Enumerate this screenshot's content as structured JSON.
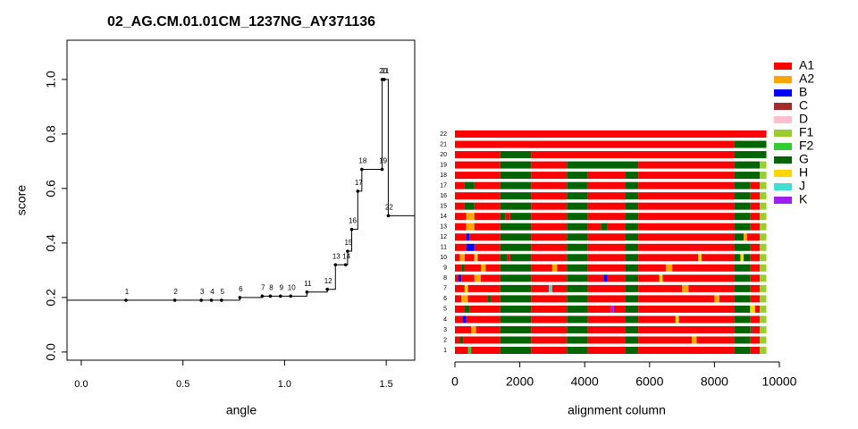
{
  "chart_data": [
    {
      "type": "step",
      "title": "02_AG.CM.01.01CM_1237NG_AY371136",
      "xlabel": "angle",
      "ylabel": "score",
      "x": [
        0.22,
        0.46,
        0.59,
        0.64,
        0.69,
        0.78,
        0.89,
        0.93,
        0.98,
        1.03,
        1.11,
        1.21,
        1.25,
        1.3,
        1.31,
        1.33,
        1.36,
        1.38,
        1.48,
        1.48,
        1.49,
        1.51
      ],
      "values": [
        0.19,
        0.19,
        0.19,
        0.19,
        0.19,
        0.2,
        0.205,
        0.205,
        0.205,
        0.205,
        0.22,
        0.23,
        0.32,
        0.32,
        0.37,
        0.45,
        0.59,
        0.67,
        0.67,
        1.0,
        1.0,
        0.5
      ],
      "point_labels": [
        "1",
        "2",
        "3",
        "4",
        "5",
        "6",
        "7",
        "8",
        "9",
        "10",
        "11",
        "12",
        "13",
        "14",
        "15",
        "16",
        "17",
        "18",
        "19",
        "20",
        "21",
        "22"
      ],
      "color": "#000000",
      "xlim": [
        -0.07,
        1.64
      ],
      "ylim": [
        -0.03,
        1.144
      ],
      "xticks": [
        {
          "value": 0,
          "label": "0.0"
        },
        0.5,
        {
          "value": 1,
          "label": "1.0"
        },
        1.5
      ],
      "yticks": [
        {
          "value": 0,
          "label": "0.0"
        },
        0.2,
        0.4,
        0.6,
        0.8,
        {
          "value": 1,
          "label": "1.0"
        }
      ]
    },
    {
      "type": "mosaic",
      "xlabel": "alignment column",
      "xlim": [
        0,
        10000
      ],
      "xticks": [
        0,
        2000,
        4000,
        6000,
        8000,
        10000
      ],
      "legend": {
        "names": [
          "A1",
          "A2",
          "B",
          "C",
          "D",
          "F1",
          "F2",
          "G",
          "H",
          "J",
          "K"
        ],
        "colors": [
          "#ff0000",
          "#ffa500",
          "#0000ff",
          "#a52a2a",
          "#ffc0cb",
          "#9acd32",
          "#32cd32",
          "#006400",
          "#ffd700",
          "#40e0d0",
          "#a020f0"
        ]
      },
      "rows": [
        {
          "label": "1",
          "breaks": [
            0,
            400,
            500,
            1400,
            2350,
            3450,
            4100,
            5250,
            5650,
            8600,
            9100,
            9400,
            9600
          ],
          "subtypes": [
            "A1",
            "F2",
            "A1",
            "G",
            "A1",
            "G",
            "A1",
            "G",
            "A1",
            "G",
            "A1",
            "F1"
          ]
        },
        {
          "label": "2",
          "breaks": [
            0,
            150,
            250,
            1400,
            2350,
            3450,
            4100,
            5250,
            5650,
            7300,
            7450,
            8600,
            9100,
            9400,
            9600
          ],
          "subtypes": [
            "A1",
            "G",
            "A1",
            "G",
            "A1",
            "G",
            "A1",
            "G",
            "A1",
            "A2",
            "A1",
            "G",
            "A1",
            "F1"
          ]
        },
        {
          "label": "3",
          "breaks": [
            0,
            500,
            650,
            1400,
            2350,
            3450,
            4100,
            5250,
            5650,
            8600,
            9100,
            9200,
            9400,
            9600
          ],
          "subtypes": [
            "A1",
            "A2",
            "A1",
            "G",
            "A1",
            "G",
            "A1",
            "G",
            "A1",
            "G",
            "C",
            "A1",
            "F1"
          ]
        },
        {
          "label": "4",
          "breaks": [
            0,
            250,
            350,
            1400,
            2350,
            3450,
            4100,
            5250,
            5650,
            6800,
            6900,
            8600,
            9100,
            9400,
            9600
          ],
          "subtypes": [
            "A1",
            "B",
            "A1",
            "G",
            "A1",
            "G",
            "A1",
            "G",
            "A1",
            "H",
            "A1",
            "G",
            "A1",
            "F1"
          ]
        },
        {
          "label": "5",
          "breaks": [
            0,
            300,
            450,
            1400,
            2350,
            3450,
            4100,
            4800,
            4900,
            5250,
            5650,
            8600,
            9100,
            9250,
            9400,
            9600
          ],
          "subtypes": [
            "A1",
            "G",
            "A1",
            "G",
            "A1",
            "G",
            "A1",
            "K",
            "A1",
            "G",
            "A1",
            "G",
            "H",
            "A1",
            "F1"
          ]
        },
        {
          "label": "6",
          "breaks": [
            0,
            200,
            400,
            1000,
            1100,
            1400,
            2350,
            3450,
            4100,
            5250,
            5650,
            8000,
            8150,
            8600,
            9100,
            9400,
            9600
          ],
          "subtypes": [
            "A1",
            "A2",
            "A1",
            "G",
            "A1",
            "G",
            "A1",
            "G",
            "A1",
            "G",
            "A1",
            "A2",
            "A1",
            "G",
            "A1",
            "F1"
          ]
        },
        {
          "label": "7",
          "breaks": [
            0,
            300,
            400,
            1400,
            2350,
            2900,
            3000,
            3450,
            4100,
            5250,
            5650,
            7000,
            7200,
            8600,
            9100,
            9400,
            9600
          ],
          "subtypes": [
            "A1",
            "H",
            "A1",
            "G",
            "A1",
            "J",
            "A1",
            "G",
            "A1",
            "G",
            "A1",
            "A2",
            "A1",
            "G",
            "A1",
            "F1"
          ]
        },
        {
          "label": "8",
          "breaks": [
            0,
            100,
            200,
            600,
            800,
            1400,
            2350,
            3450,
            4100,
            4600,
            4700,
            5250,
            5650,
            6300,
            6400,
            8600,
            9100,
            9400,
            9600
          ],
          "subtypes": [
            "A1",
            "B",
            "A1",
            "A2",
            "A1",
            "G",
            "A1",
            "G",
            "A1",
            "B",
            "A1",
            "G",
            "A1",
            "H",
            "A1",
            "G",
            "A1",
            "F1"
          ]
        },
        {
          "label": "9",
          "breaks": [
            0,
            200,
            300,
            800,
            950,
            1400,
            2350,
            3000,
            3150,
            3450,
            4100,
            5250,
            5650,
            6500,
            6700,
            8600,
            9100,
            9400,
            9600
          ],
          "subtypes": [
            "A1",
            "G",
            "A1",
            "A2",
            "A1",
            "G",
            "A1",
            "A2",
            "A1",
            "G",
            "A1",
            "G",
            "A1",
            "A2",
            "A1",
            "G",
            "A1",
            "F1"
          ]
        },
        {
          "label": "10",
          "breaks": [
            0,
            150,
            300,
            600,
            700,
            1400,
            1600,
            1700,
            2350,
            3450,
            4100,
            5250,
            5650,
            7500,
            7600,
            8600,
            8800,
            8900,
            9100,
            9400,
            9600
          ],
          "subtypes": [
            "A1",
            "A2",
            "A1",
            "H",
            "A1",
            "G",
            "A1",
            "G",
            "A1",
            "G",
            "A1",
            "G",
            "A1",
            "H",
            "A1",
            "G",
            "H",
            "G",
            "A1",
            "F1"
          ]
        },
        {
          "label": "11",
          "breaks": [
            0,
            350,
            600,
            1400,
            2350,
            3450,
            4100,
            5250,
            5650,
            8600,
            9100,
            9400,
            9600
          ],
          "subtypes": [
            "A1",
            "B",
            "A1",
            "G",
            "A1",
            "G",
            "A1",
            "G",
            "A1",
            "G",
            "A1",
            "F1"
          ]
        },
        {
          "label": "12",
          "breaks": [
            0,
            350,
            450,
            1400,
            2350,
            3450,
            4100,
            5250,
            5650,
            8600,
            8900,
            9000,
            9400,
            9600
          ],
          "subtypes": [
            "A1",
            "B",
            "A1",
            "G",
            "A1",
            "G",
            "A1",
            "G",
            "A1",
            "G",
            "A2",
            "A1",
            "F1"
          ]
        },
        {
          "label": "13",
          "breaks": [
            0,
            350,
            600,
            1400,
            2350,
            3450,
            4100,
            4500,
            4700,
            5250,
            5650,
            8600,
            9100,
            9400,
            9600
          ],
          "subtypes": [
            "A1",
            "A2",
            "A1",
            "G",
            "A1",
            "G",
            "A1",
            "G",
            "A1",
            "G",
            "A1",
            "G",
            "A1",
            "F1"
          ]
        },
        {
          "label": "14",
          "breaks": [
            0,
            350,
            600,
            1400,
            1550,
            1700,
            2350,
            3450,
            4100,
            5250,
            5650,
            8600,
            9100,
            9400,
            9600
          ],
          "subtypes": [
            "A1",
            "A2",
            "A1",
            "G",
            "A1",
            "G",
            "A1",
            "G",
            "A1",
            "G",
            "A1",
            "G",
            "A1",
            "F1"
          ]
        },
        {
          "label": "15",
          "breaks": [
            0,
            300,
            600,
            1400,
            2350,
            3450,
            4100,
            5250,
            5650,
            8600,
            9100,
            9400,
            9600
          ],
          "subtypes": [
            "A1",
            "G",
            "A1",
            "G",
            "A1",
            "G",
            "A1",
            "G",
            "A1",
            "G",
            "A1",
            "F1"
          ]
        },
        {
          "label": "16",
          "breaks": [
            0,
            1400,
            2350,
            3450,
            4100,
            5250,
            5650,
            8600,
            9100,
            9400,
            9600
          ],
          "subtypes": [
            "A1",
            "G",
            "A1",
            "G",
            "A1",
            "G",
            "A1",
            "G",
            "A1",
            "F1"
          ]
        },
        {
          "label": "17",
          "breaks": [
            0,
            300,
            600,
            1400,
            2350,
            3450,
            4100,
            5250,
            5650,
            8600,
            9100,
            9400,
            9600
          ],
          "subtypes": [
            "A1",
            "G",
            "A1",
            "G",
            "A1",
            "G",
            "A1",
            "G",
            "A1",
            "G",
            "A1",
            "F1"
          ]
        },
        {
          "label": "18",
          "breaks": [
            0,
            1400,
            2350,
            3450,
            4100,
            5250,
            5650,
            8600,
            9400,
            9600
          ],
          "subtypes": [
            "A1",
            "G",
            "A1",
            "G",
            "A1",
            "G",
            "A1",
            "G",
            "F1"
          ]
        },
        {
          "label": "19",
          "breaks": [
            0,
            1400,
            2350,
            3450,
            5650,
            8600,
            9400,
            9600
          ],
          "subtypes": [
            "A1",
            "G",
            "A1",
            "G",
            "A1",
            "G",
            "F1"
          ]
        },
        {
          "label": "20",
          "breaks": [
            0,
            1400,
            2350,
            8600,
            9600
          ],
          "subtypes": [
            "A1",
            "G",
            "A1",
            "G"
          ]
        },
        {
          "label": "21",
          "breaks": [
            0,
            8600,
            9600
          ],
          "subtypes": [
            "A1",
            "G"
          ]
        },
        {
          "label": "22",
          "breaks": [
            0,
            9600
          ],
          "subtypes": [
            "A1"
          ]
        }
      ]
    }
  ]
}
